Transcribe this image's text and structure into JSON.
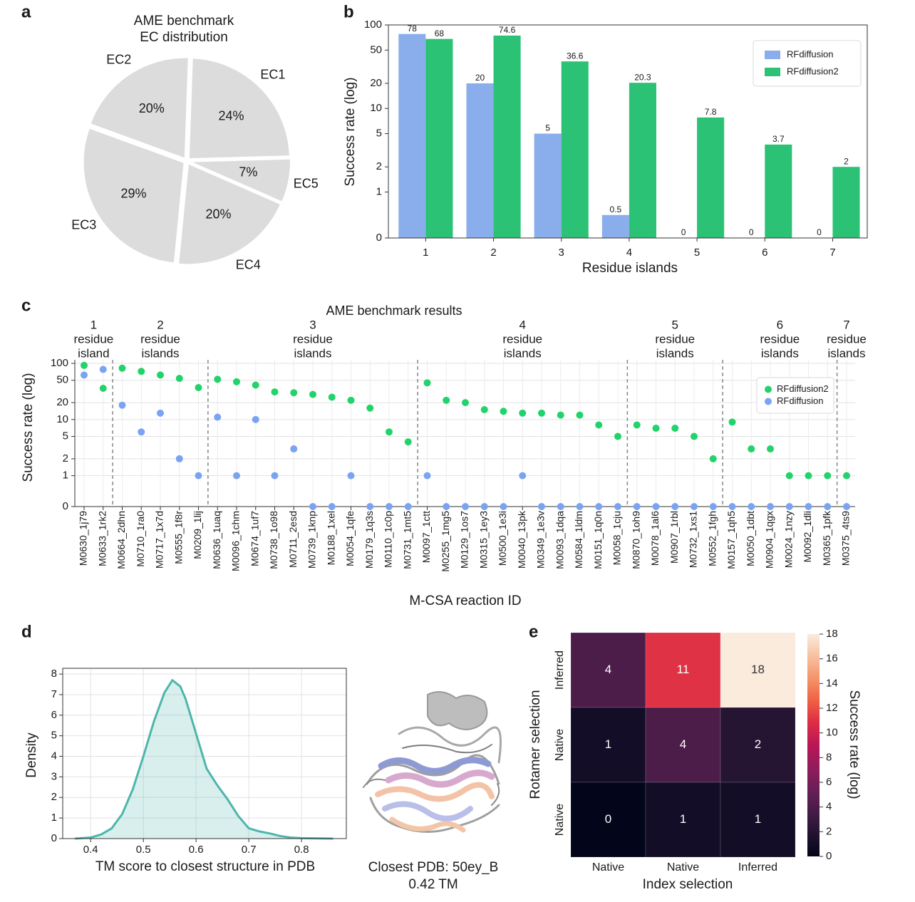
{
  "chart_data": [
    {
      "panel": "a",
      "type": "pie",
      "title": [
        "AME benchmark",
        "EC distribution"
      ],
      "categories": [
        "EC1",
        "EC5",
        "EC4",
        "EC3",
        "EC2"
      ],
      "values": [
        24,
        7,
        20,
        29,
        20
      ],
      "value_labels": [
        "24%",
        "7%",
        "20%",
        "29%",
        "20%"
      ],
      "color": "#dcdcdc"
    },
    {
      "panel": "b",
      "type": "bar",
      "xlabel": "Residue islands",
      "ylabel": "Success rate (log)",
      "categories": [
        "1",
        "2",
        "3",
        "4",
        "5",
        "6",
        "7"
      ],
      "yscale": "symlog",
      "ylim": [
        0,
        100
      ],
      "yticks": [
        0,
        1,
        2,
        5,
        10,
        20,
        50,
        100
      ],
      "legend": "upper right",
      "series": [
        {
          "name": "RFdiffusion",
          "color": "#8aaeec",
          "values": [
            78,
            20,
            5,
            0.5,
            0,
            0,
            0
          ]
        },
        {
          "name": "RFdiffusion2",
          "color": "#2bc275",
          "values": [
            68,
            74.6,
            36.6,
            20.3,
            7.8,
            3.7,
            2
          ]
        }
      ]
    },
    {
      "panel": "c",
      "type": "scatter",
      "title": "AME benchmark results",
      "xlabel": "M-CSA reaction ID",
      "ylabel": "Success rate (log)",
      "yscale": "symlog",
      "ylim": [
        0,
        100
      ],
      "yticks": [
        0,
        1,
        2,
        5,
        10,
        20,
        50,
        100
      ],
      "grid": true,
      "legend": "upper right",
      "groups": [
        {
          "label": [
            "1",
            "residue",
            "island"
          ],
          "categories": [
            "M0630_1j79",
            "M0633_1rk2"
          ]
        },
        {
          "label": [
            "2",
            "residue",
            "islands"
          ],
          "categories": [
            "M0664_2dhn",
            "M0710_1ra0",
            "M0717_1x7d",
            "M0555_1f8r",
            "M0209_1lij"
          ]
        },
        {
          "label": [
            "3",
            "residue",
            "islands"
          ],
          "categories": [
            "M0636_1uaq",
            "M0096_1chm",
            "M0674_1uf7",
            "M0738_1o98",
            "M0711_2esd",
            "M0739_1knp",
            "M0188_1xel",
            "M0054_1qfe",
            "M0179_1q3s",
            "M0110_1c0p",
            "M0731_1mt5"
          ]
        },
        {
          "label": [
            "4",
            "residue",
            "islands"
          ],
          "categories": [
            "M0097_1ctt",
            "M0255_1mg5",
            "M0129_1os7",
            "M0315_1ey3",
            "M0500_1e3i",
            "M0040_13pk",
            "M0349_1e3v",
            "M0093_1dqa",
            "M0584_1ldm",
            "M0151_1q0n",
            "M0058_1cju"
          ]
        },
        {
          "label": [
            "5",
            "residue",
            "islands"
          ],
          "categories": [
            "M0870_1oh9",
            "M0078_1al6",
            "M0907_1rbl",
            "M0732_1xs1",
            "M0552_1fgh"
          ]
        },
        {
          "label": [
            "6",
            "residue",
            "islands"
          ],
          "categories": [
            "M0157_1qh5",
            "M0050_1dbt",
            "M0904_1qgx",
            "M0024_1nzy",
            "M0092_1dli",
            "M0365_1pfk"
          ]
        },
        {
          "label": [
            "7",
            "residue",
            "islands"
          ],
          "categories": [
            "M0375_4ts9"
          ]
        }
      ],
      "series": [
        {
          "name": "RFdiffusion2",
          "color": "#22d36b",
          "values": [
            92,
            36,
            82,
            72,
            62,
            54,
            37,
            52,
            47,
            41,
            31,
            30,
            28,
            25,
            22,
            16,
            6,
            4,
            45,
            22,
            20,
            15,
            14,
            13,
            13,
            12,
            12,
            8,
            5,
            8,
            7,
            7,
            5,
            2,
            9,
            3,
            3,
            1,
            1,
            1,
            1
          ]
        },
        {
          "name": "RFdiffusion",
          "color": "#7aa3f2",
          "values": [
            62,
            78,
            18,
            6,
            13,
            2,
            1,
            11,
            1,
            10,
            1,
            3,
            0,
            0,
            1,
            0,
            0,
            0,
            1,
            0,
            0,
            0,
            0,
            1,
            0,
            0,
            0,
            0,
            0,
            0,
            0,
            0,
            0,
            0,
            0,
            0,
            0,
            0,
            0,
            0,
            0
          ]
        }
      ]
    },
    {
      "panel": "d",
      "type": "area",
      "xlabel": "TM score to closest structure in PDB",
      "ylabel": "Density",
      "x": [
        0.37,
        0.4,
        0.42,
        0.44,
        0.46,
        0.48,
        0.5,
        0.52,
        0.54,
        0.555,
        0.57,
        0.58,
        0.6,
        0.62,
        0.64,
        0.66,
        0.68,
        0.7,
        0.72,
        0.74,
        0.76,
        0.78,
        0.8,
        0.86
      ],
      "values": [
        0,
        0.05,
        0.2,
        0.5,
        1.2,
        2.4,
        4.0,
        5.7,
        7.1,
        7.7,
        7.4,
        6.8,
        5.1,
        3.4,
        2.6,
        1.9,
        1.1,
        0.5,
        0.35,
        0.25,
        0.12,
        0.05,
        0.02,
        0
      ],
      "xlim": [
        0.347,
        0.885
      ],
      "ylim": [
        0,
        8.28
      ],
      "xticks": [
        0.4,
        0.5,
        0.6,
        0.7,
        0.8
      ],
      "yticks": [
        0,
        1,
        2,
        3,
        4,
        5,
        6,
        7,
        8
      ],
      "grid": true,
      "color": "#4db6ac",
      "image_caption": [
        "Closest PDB: 50ey_B",
        "0.42 TM"
      ]
    },
    {
      "panel": "e",
      "type": "heatmap",
      "xlabel": "Index selection",
      "ylabel": "Rotamer selection",
      "rows": [
        "Inferred",
        "Native",
        "Native"
      ],
      "columns": [
        "Native",
        "Native",
        "Inferred"
      ],
      "values": [
        [
          4,
          11,
          18
        ],
        [
          1,
          4,
          2
        ],
        [
          0,
          1,
          1
        ]
      ],
      "cmap": "rocket",
      "clim": [
        0,
        18
      ],
      "cticks": [
        0,
        2,
        4,
        6,
        8,
        10,
        12,
        14,
        16,
        18
      ],
      "colorbar_label": "Success rate (log)"
    }
  ]
}
